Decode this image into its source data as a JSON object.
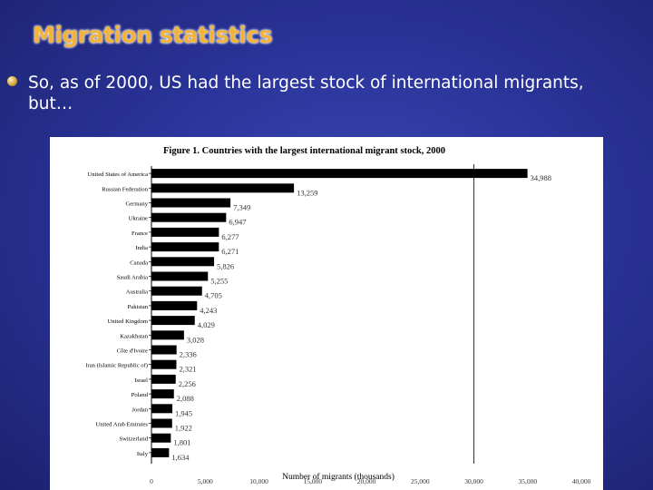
{
  "slide": {
    "title": "Migration statistics",
    "bullet": "So,  as of 2000, US had the largest stock of international migrants, but…"
  },
  "colors": {
    "title": "#f2b33a",
    "background": "#2a3499",
    "bar": "#000000"
  },
  "chart_data": {
    "type": "bar",
    "orientation": "horizontal",
    "title": "Figure 1. Countries with the largest international migrant stock, 2000",
    "xlabel": "Number of migrants (thousands)",
    "ylabel": "",
    "xlim": [
      0,
      40000
    ],
    "xticks": [
      0,
      5000,
      10000,
      15000,
      20000,
      25000,
      30000,
      35000,
      40000
    ],
    "xtick_labels": [
      "0",
      "5,000",
      "10,000",
      "15,000",
      "20,000",
      "25,000",
      "30,000",
      "35,000",
      "40,000"
    ],
    "reference_line": 30000,
    "categories": [
      "United States of America",
      "Russian Federation",
      "Germany",
      "Ukraine",
      "France",
      "India",
      "Canada",
      "Saudi Arabia",
      "Australia",
      "Pakistan",
      "United Kingdom",
      "Kazakhstan",
      "Côte d'Ivoire",
      "Iran (Islamic Republic of)",
      "Israel",
      "Poland",
      "Jordan",
      "United Arab Emirates",
      "Switzerland",
      "Italy"
    ],
    "values": [
      34988,
      13259,
      7349,
      6947,
      6277,
      6271,
      5826,
      5255,
      4705,
      4243,
      4029,
      3028,
      2336,
      2321,
      2256,
      2088,
      1945,
      1922,
      1801,
      1634
    ],
    "value_labels": [
      "34,988",
      "13,259",
      "7,349",
      "6,947",
      "6,277",
      "6,271",
      "5,826",
      "5,255",
      "4,705",
      "4,243",
      "4,029",
      "3,028",
      "2,336",
      "2,321",
      "2,256",
      "2,088",
      "1,945",
      "1,922",
      "1,801",
      "1,634"
    ]
  }
}
